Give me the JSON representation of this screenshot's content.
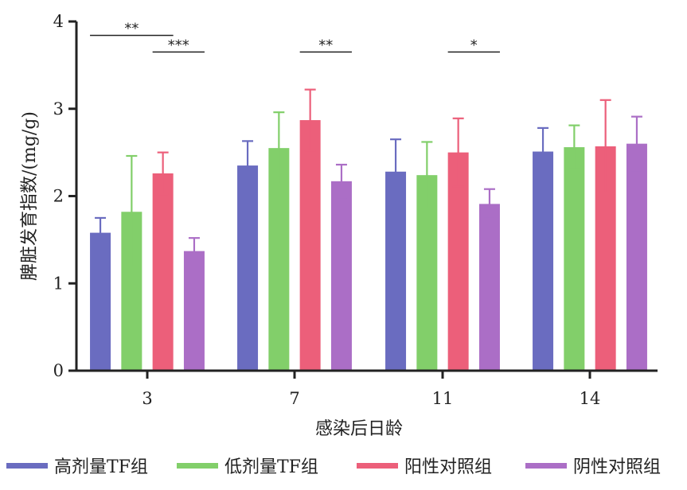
{
  "chart_data": {
    "type": "bar",
    "xlabel": "感染后日龄",
    "ylabel": "脾脏发育指数/(mg/g)",
    "ylim": [
      0,
      4
    ],
    "yticks": [
      0,
      1,
      2,
      3,
      4
    ],
    "categories": [
      "3",
      "7",
      "11",
      "14"
    ],
    "series": [
      {
        "name": "高剂量TF组",
        "color": "#6a6cc0",
        "values": [
          1.58,
          2.35,
          2.28,
          2.51
        ],
        "errors": [
          0.17,
          0.28,
          0.37,
          0.27
        ]
      },
      {
        "name": "低剂量TF组",
        "color": "#82cf6a",
        "values": [
          1.82,
          2.55,
          2.24,
          2.56
        ],
        "errors": [
          0.64,
          0.41,
          0.38,
          0.25
        ]
      },
      {
        "name": "阳性对照组",
        "color": "#ec5f7a",
        "values": [
          2.26,
          2.87,
          2.5,
          2.57
        ],
        "errors": [
          0.24,
          0.35,
          0.39,
          0.53
        ]
      },
      {
        "name": "阴性对照组",
        "color": "#ab6ec6",
        "values": [
          1.37,
          2.17,
          1.91,
          2.6
        ],
        "errors": [
          0.15,
          0.19,
          0.17,
          0.31
        ]
      }
    ],
    "annotations": [
      {
        "category": "3",
        "from_series": 0,
        "to_series": 2,
        "label": "**",
        "y": 3.84
      },
      {
        "category": "3",
        "from_series": 2,
        "to_series": 3,
        "label": "***",
        "y": 3.65
      },
      {
        "category": "7",
        "from_series": 2,
        "to_series": 3,
        "label": "**",
        "y": 3.65
      },
      {
        "category": "11",
        "from_series": 2,
        "to_series": 3,
        "label": "*",
        "y": 3.65
      }
    ]
  }
}
